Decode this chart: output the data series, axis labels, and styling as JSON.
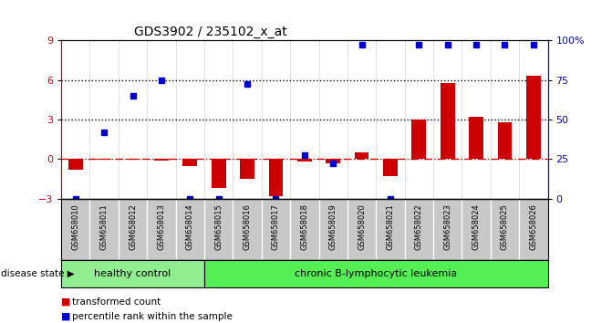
{
  "title": "GDS3902 / 235102_x_at",
  "samples": [
    "GSM658010",
    "GSM658011",
    "GSM658012",
    "GSM658013",
    "GSM658014",
    "GSM658015",
    "GSM658016",
    "GSM658017",
    "GSM658018",
    "GSM658019",
    "GSM658020",
    "GSM658021",
    "GSM658022",
    "GSM658023",
    "GSM658024",
    "GSM658025",
    "GSM658026"
  ],
  "red_values": [
    -0.8,
    -0.05,
    -0.05,
    -0.1,
    -0.5,
    -2.2,
    -1.5,
    -2.8,
    -0.2,
    -0.3,
    0.5,
    -1.3,
    3.0,
    5.8,
    3.2,
    2.8,
    6.3
  ],
  "blue_values": [
    -3.0,
    2.0,
    4.8,
    6.0,
    -3.0,
    -3.0,
    5.7,
    -3.0,
    0.3,
    -0.3,
    8.7,
    -3.0,
    8.7,
    8.7,
    8.7,
    8.7,
    8.7
  ],
  "group_boundary": 5,
  "group_labels": [
    "healthy control",
    "chronic B-lymphocytic leukemia"
  ],
  "group_color_hc": "#90EE90",
  "group_color_leuk": "#55EE55",
  "ylim": [
    -3,
    9
  ],
  "yticks_red": [
    -3,
    0,
    3,
    6,
    9
  ],
  "yticks_blue_vals": [
    -3,
    0,
    3,
    6,
    9
  ],
  "yticks_blue_labels": [
    "0",
    "25",
    "50",
    "75",
    "100%"
  ],
  "hlines": [
    3.0,
    6.0
  ],
  "dashed_hline": 0.0,
  "bar_color": "#CC0000",
  "dot_color": "#0000CC",
  "legend_label_red": "transformed count",
  "legend_label_blue": "percentile rank within the sample",
  "disease_state_label": "disease state",
  "background_color": "#ffffff",
  "plot_bg_color": "#ffffff",
  "tick_label_area_color": "#c8c8c8"
}
